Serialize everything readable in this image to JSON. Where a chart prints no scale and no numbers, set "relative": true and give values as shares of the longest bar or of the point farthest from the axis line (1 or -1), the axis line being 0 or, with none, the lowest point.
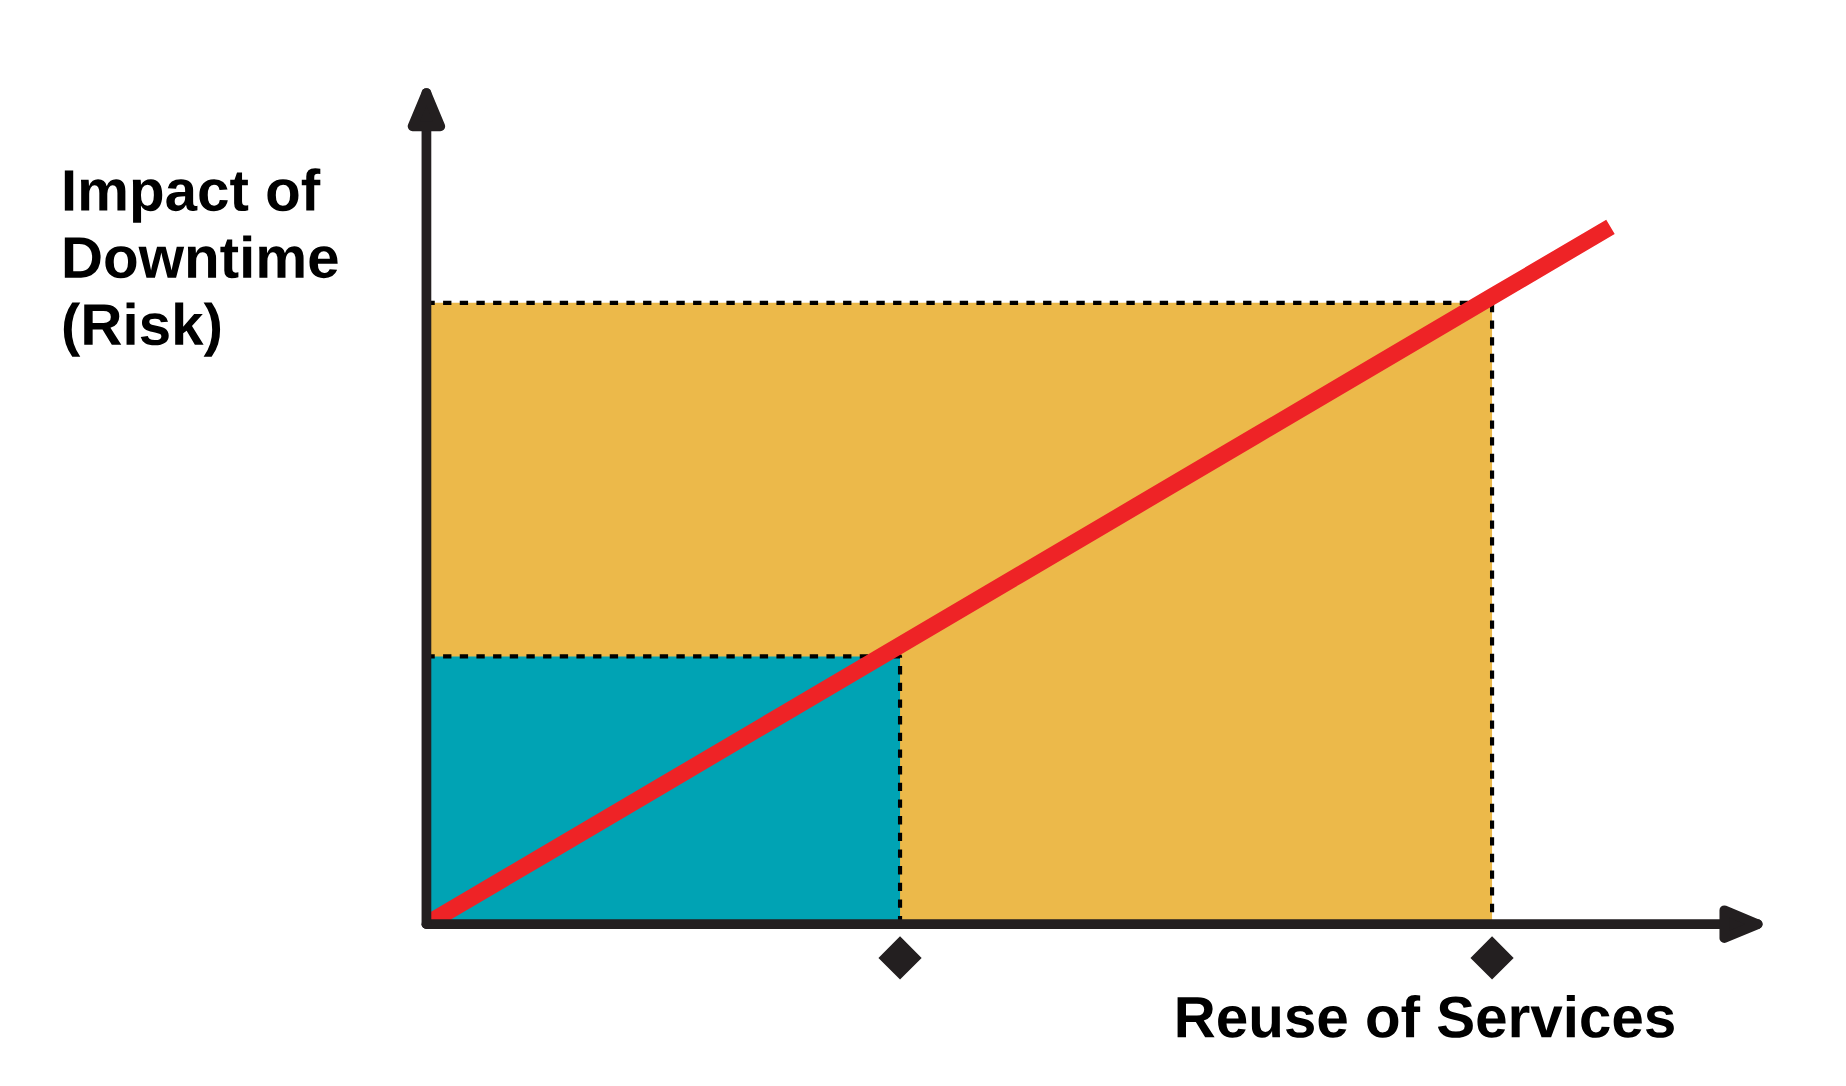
{
  "chart_data": {
    "type": "line",
    "relative": true,
    "ylabel": "Impact of\nDowntime\n(Risk)",
    "xlabel": "Reuse of Services",
    "categories": [
      null,
      null,
      null,
      null,
      null,
      null,
      null,
      null,
      null,
      null,
      null
    ],
    "grid": false,
    "legend": false,
    "marker": "none",
    "line_style": "solid",
    "series": [
      {
        "type": "area",
        "color": "#ecb94a",
        "values": [
          0.891,
          0.891,
          0.891,
          0.891,
          0.891,
          0.891,
          0.891,
          0.891,
          0.891,
          0.891,
          null
        ]
      },
      {
        "type": "area",
        "color": "#00a3b4",
        "values": [
          0.384,
          0.384,
          0.384,
          0.384,
          0.384,
          null,
          null,
          null,
          null,
          null,
          null
        ]
      },
      {
        "color": "#ee2326",
        "values": [
          0,
          0.1,
          0.2,
          0.3,
          0.4,
          0.5,
          0.6,
          0.7,
          0.8,
          0.9,
          1
        ]
      }
    ]
  }
}
